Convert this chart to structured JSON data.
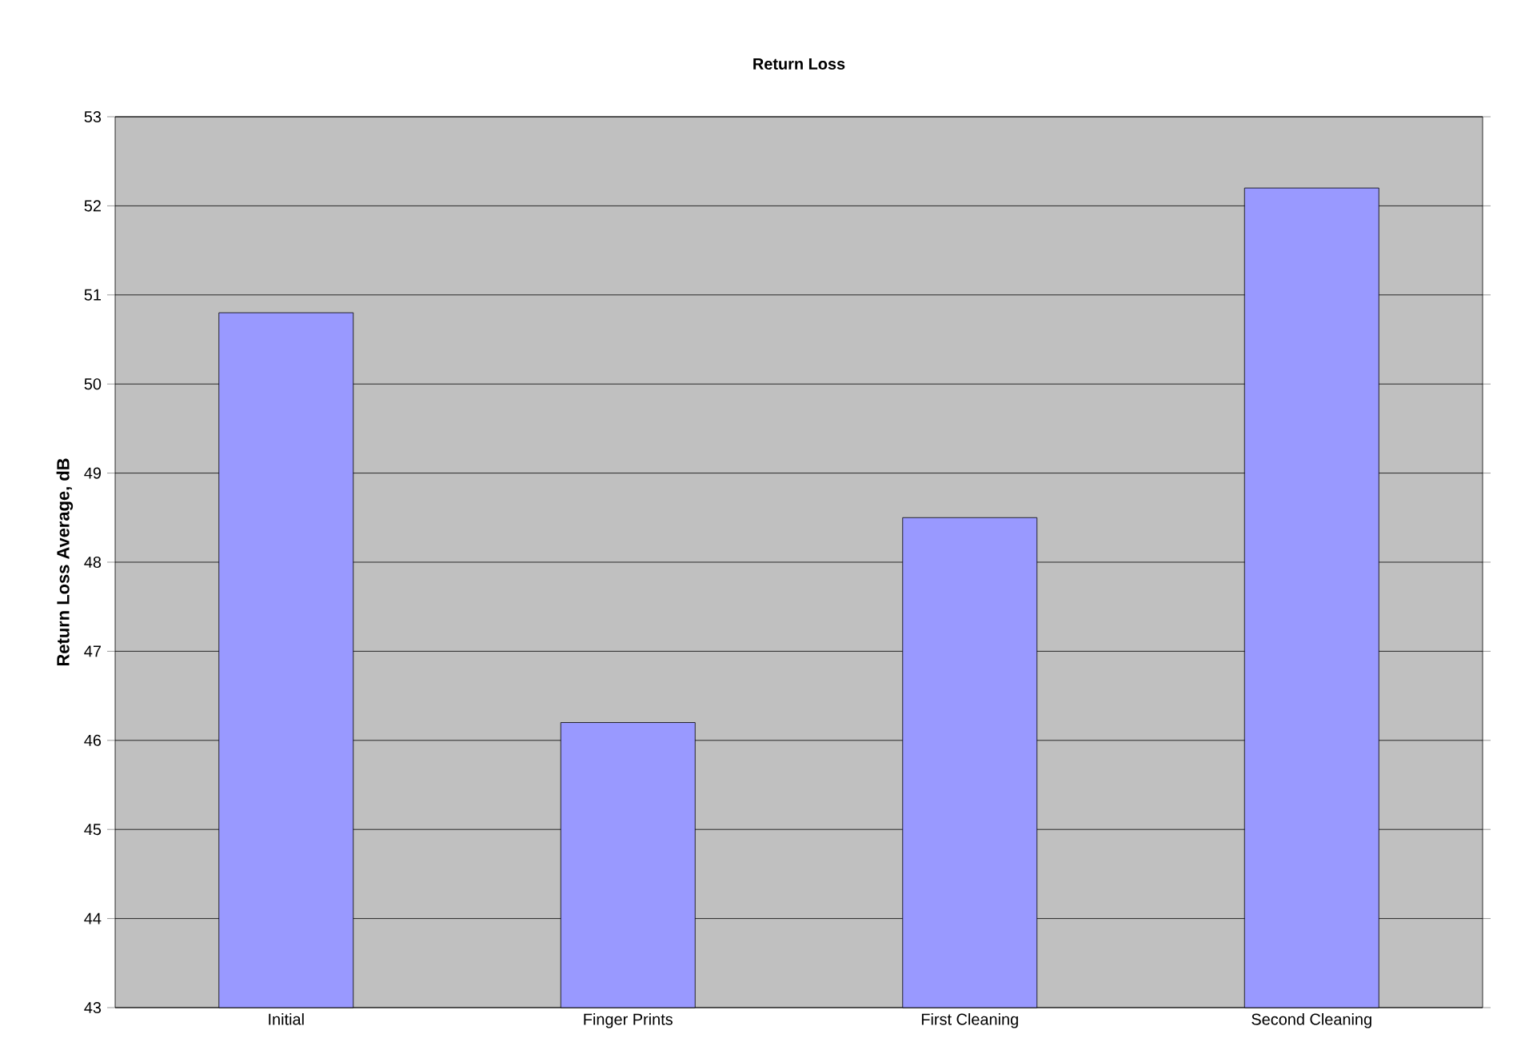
{
  "chart_data": {
    "type": "bar",
    "title": "Return Loss",
    "ylabel": "Return Loss Average, dB",
    "categories": [
      "Initial",
      "Finger Prints",
      "First Cleaning",
      "Second Cleaning"
    ],
    "values": [
      50.8,
      46.2,
      48.5,
      52.2
    ],
    "color": "#9999ff",
    "ylim": [
      43,
      53
    ],
    "yticks": [
      43,
      44,
      45,
      46,
      47,
      48,
      49,
      50,
      51,
      52,
      53
    ],
    "grid": "y"
  }
}
